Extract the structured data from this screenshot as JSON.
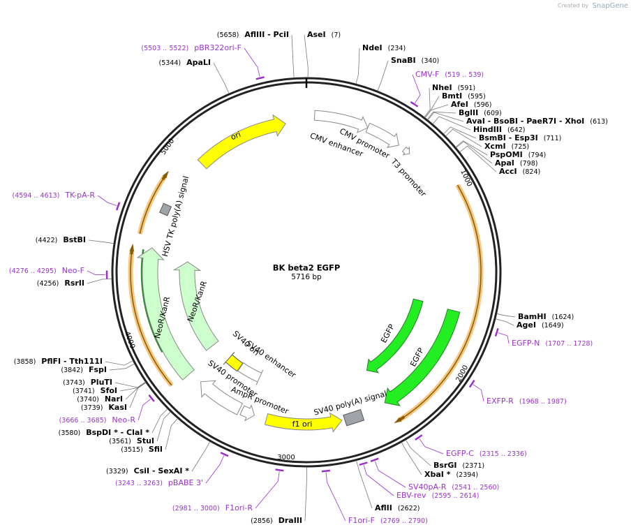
{
  "header": {
    "created_by": "Created by",
    "brand": "SnapGene"
  },
  "map": {
    "name": "BK beta2 EGFP",
    "length": "5716 bp"
  },
  "ruler": [
    "1000",
    "2000",
    "3000",
    "4000",
    "5000"
  ],
  "sites": [
    {
      "position": "(5658)",
      "name": "AflIII  - PciI"
    },
    {
      "position": "(7)",
      "name": "AseI"
    },
    {
      "position": "(234)",
      "name": "NdeI"
    },
    {
      "position": "(340)",
      "name": "SnaBI"
    },
    {
      "position": "(591)",
      "name": "NheI"
    },
    {
      "position": "(595)",
      "name": "BmtI"
    },
    {
      "position": "(596)",
      "name": "AfeI"
    },
    {
      "position": "(609)",
      "name": "BglII"
    },
    {
      "position": "(613)",
      "name": "AvaI  - BsoBI  - PaeR7I  - XhoI"
    },
    {
      "position": "(642)",
      "name": "HindIII"
    },
    {
      "position": "(711)",
      "name": "BsmBI  - Esp3I"
    },
    {
      "position": "(725)",
      "name": "XcmI"
    },
    {
      "position": "(794)",
      "name": "PspOMI"
    },
    {
      "position": "(798)",
      "name": "ApaI"
    },
    {
      "position": "(824)",
      "name": "AccI"
    },
    {
      "position": "(1624)",
      "name": "BamHI"
    },
    {
      "position": "(1649)",
      "name": "AgeI"
    },
    {
      "position": "(2371)",
      "name": "BsrGI"
    },
    {
      "position": "(2394)",
      "name": "XbaI *"
    },
    {
      "position": "(2622)",
      "name": "AflII"
    },
    {
      "position": "(2856)",
      "name": "DraIII"
    },
    {
      "position": "(3329)",
      "name": "CsiI  - SexAI *"
    },
    {
      "position": "(3515)",
      "name": "SfiI"
    },
    {
      "position": "(3561)",
      "name": "StuI"
    },
    {
      "position": "(3580)",
      "name": "BspDI *  - ClaI *"
    },
    {
      "position": "(3739)",
      "name": "KasI"
    },
    {
      "position": "(3740)",
      "name": "NarI"
    },
    {
      "position": "(3741)",
      "name": "SfoI"
    },
    {
      "position": "(3743)",
      "name": "PluTI"
    },
    {
      "position": "(3842)",
      "name": "FspI"
    },
    {
      "position": "(3858)",
      "name": "PflFI  - Tth111I"
    },
    {
      "position": "(4256)",
      "name": "RsrII"
    },
    {
      "position": "(4422)",
      "name": "BstBI"
    },
    {
      "position": "(5344)",
      "name": "ApaLI"
    }
  ],
  "primers": [
    {
      "range": "(5503 .. 5522)",
      "name": "pBR322ori-F"
    },
    {
      "range": "(519 .. 539)",
      "name": "CMV-F"
    },
    {
      "range": "(1707 .. 1728)",
      "name": "EGFP-N"
    },
    {
      "range": "(1968 .. 1987)",
      "name": "EXFP-R"
    },
    {
      "range": "(2315 .. 2336)",
      "name": "EGFP-C"
    },
    {
      "range": "(2541 .. 2560)",
      "name": "SV40pA-R"
    },
    {
      "range": "(2595 .. 2614)",
      "name": "EBV-rev"
    },
    {
      "range": "(2769 .. 2790)",
      "name": "F1ori-F"
    },
    {
      "range": "(2981 .. 3000)",
      "name": "F1ori-R"
    },
    {
      "range": "(3243 .. 3263)",
      "name": "pBABE 3'"
    },
    {
      "range": "(3666 .. 3685)",
      "name": "Neo-R"
    },
    {
      "range": "(4276 .. 4295)",
      "name": "Neo-F"
    },
    {
      "range": "(4594 .. 4613)",
      "name": "TK-pA-R"
    }
  ],
  "features": [
    "ori",
    "CMV enhancer",
    "CMV promoter",
    "T3 promoter",
    "EGFP",
    "EGFP",
    "SV40 poly(A) signal",
    "f1 ori",
    "AmpR promoter",
    "SV40 promoter",
    "SV40 ori",
    "SV40 enhancer",
    "NeoR/KanR",
    "NeoR/KanR",
    "HSV TK poly(A) signal"
  ]
}
